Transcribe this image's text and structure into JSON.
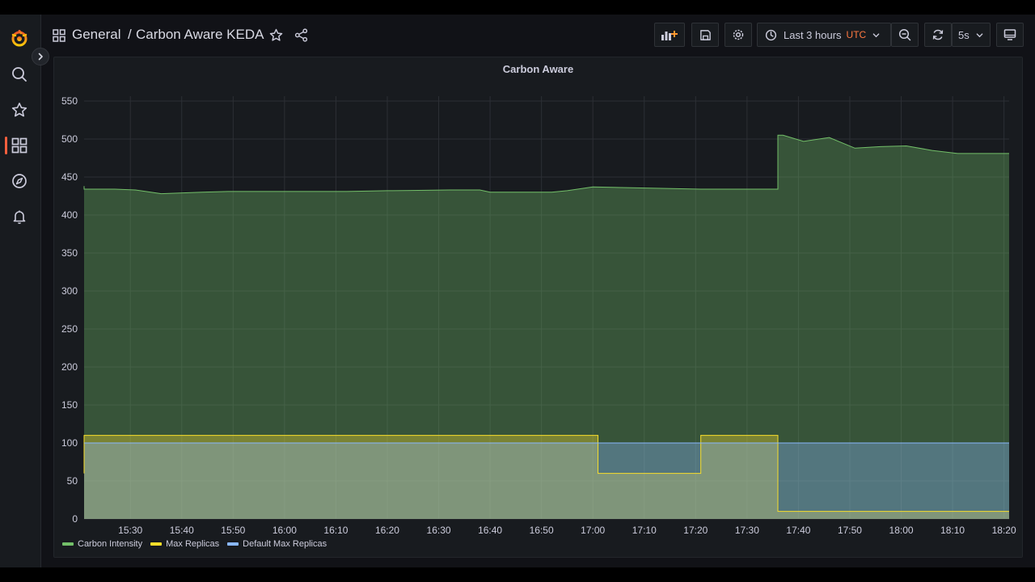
{
  "header": {
    "folder": "General",
    "separator": "/",
    "dashboard_title": "Carbon Aware KEDA"
  },
  "toolbar": {
    "time_range_label": "Last 3 hours",
    "timezone": "UTC",
    "refresh_interval": "5s"
  },
  "sidebar": {
    "items": [
      {
        "name": "grafana-logo",
        "icon": "grafana-logo-icon"
      },
      {
        "name": "search",
        "icon": "search-icon"
      },
      {
        "name": "starred",
        "icon": "star-icon"
      },
      {
        "name": "dashboards",
        "icon": "apps-grid-icon",
        "active": true
      },
      {
        "name": "explore",
        "icon": "compass-icon"
      },
      {
        "name": "alerting",
        "icon": "bell-icon"
      }
    ]
  },
  "colors": {
    "carbon_intensity": "#73bf69",
    "max_replicas": "#fade2a",
    "default_max_replicas": "#8ab8ff",
    "accent": "#f55f3e",
    "timezone_text": "#ff7941"
  },
  "chart_data": {
    "type": "area",
    "title": "Carbon Aware",
    "x_ticks": [
      "15:30",
      "15:40",
      "15:50",
      "16:00",
      "16:10",
      "16:20",
      "16:30",
      "16:40",
      "16:50",
      "17:00",
      "17:10",
      "17:20",
      "17:30",
      "17:40",
      "17:50",
      "18:00",
      "18:10",
      "18:20"
    ],
    "x_range": [
      "15:21",
      "18:21"
    ],
    "y_ticks": [
      0,
      50,
      100,
      150,
      200,
      250,
      300,
      350,
      400,
      450,
      500,
      550
    ],
    "ylim": [
      0,
      550
    ],
    "grid": true,
    "legend_position": "bottom-left",
    "series": [
      {
        "name": "Carbon Intensity",
        "color": "#73bf69",
        "points": [
          [
            "15:21",
            438
          ],
          [
            "15:21",
            434
          ],
          [
            "15:27",
            434
          ],
          [
            "15:31",
            433
          ],
          [
            "15:36",
            428
          ],
          [
            "15:44",
            430
          ],
          [
            "15:49",
            431
          ],
          [
            "16:12",
            431
          ],
          [
            "16:20",
            432
          ],
          [
            "16:21",
            432
          ],
          [
            "16:32",
            433
          ],
          [
            "16:38",
            433
          ],
          [
            "16:40",
            430
          ],
          [
            "16:52",
            430
          ],
          [
            "16:55",
            432
          ],
          [
            "17:00",
            437
          ],
          [
            "17:21",
            434
          ],
          [
            "17:36",
            434
          ],
          [
            "17:36",
            505
          ],
          [
            "17:37",
            505
          ],
          [
            "17:41",
            497
          ],
          [
            "17:46",
            502
          ],
          [
            "17:51",
            488
          ],
          [
            "17:56",
            490
          ],
          [
            "18:01",
            491
          ],
          [
            "18:06",
            485
          ],
          [
            "18:11",
            481
          ],
          [
            "18:21",
            481
          ]
        ]
      },
      {
        "name": "Max Replicas",
        "color": "#fade2a",
        "points": [
          [
            "15:21",
            60
          ],
          [
            "15:21",
            110
          ],
          [
            "17:01",
            110
          ],
          [
            "17:01",
            60
          ],
          [
            "17:21",
            60
          ],
          [
            "17:21",
            110
          ],
          [
            "17:36",
            110
          ],
          [
            "17:36",
            10
          ],
          [
            "18:21",
            10
          ]
        ]
      },
      {
        "name": "Default Max Replicas",
        "color": "#8ab8ff",
        "points": [
          [
            "15:21",
            100
          ],
          [
            "18:21",
            100
          ]
        ]
      }
    ]
  }
}
